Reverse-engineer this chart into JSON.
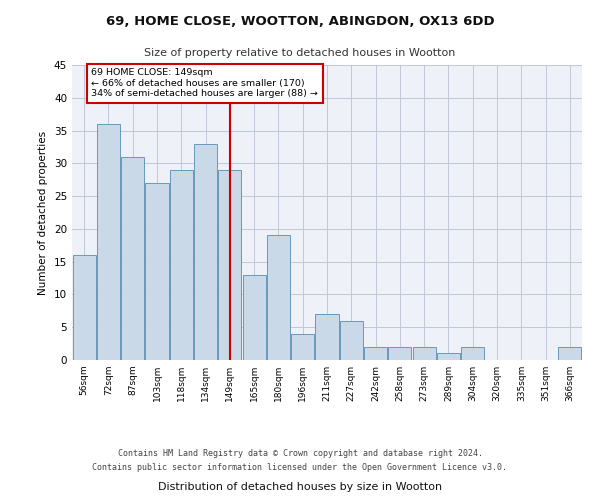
{
  "title1": "69, HOME CLOSE, WOOTTON, ABINGDON, OX13 6DD",
  "title2": "Size of property relative to detached houses in Wootton",
  "xlabel": "Distribution of detached houses by size in Wootton",
  "ylabel": "Number of detached properties",
  "categories": [
    "56sqm",
    "72sqm",
    "87sqm",
    "103sqm",
    "118sqm",
    "134sqm",
    "149sqm",
    "165sqm",
    "180sqm",
    "196sqm",
    "211sqm",
    "227sqm",
    "242sqm",
    "258sqm",
    "273sqm",
    "289sqm",
    "304sqm",
    "320sqm",
    "335sqm",
    "351sqm",
    "366sqm"
  ],
  "values": [
    16,
    36,
    31,
    27,
    29,
    33,
    29,
    13,
    19,
    4,
    7,
    6,
    2,
    2,
    2,
    1,
    2,
    0,
    0,
    0,
    2
  ],
  "bar_color": "#c9d9e8",
  "bar_edge_color": "#6699bb",
  "vline_x": 6,
  "vline_color": "#cc0000",
  "annotation_text": "69 HOME CLOSE: 149sqm\n← 66% of detached houses are smaller (170)\n34% of semi-detached houses are larger (88) →",
  "annotation_box_color": "#ffffff",
  "annotation_box_edge_color": "#cc0000",
  "ylim": [
    0,
    45
  ],
  "yticks": [
    0,
    5,
    10,
    15,
    20,
    25,
    30,
    35,
    40,
    45
  ],
  "background_color": "#eef2f8",
  "footer1": "Contains HM Land Registry data © Crown copyright and database right 2024.",
  "footer2": "Contains public sector information licensed under the Open Government Licence v3.0."
}
